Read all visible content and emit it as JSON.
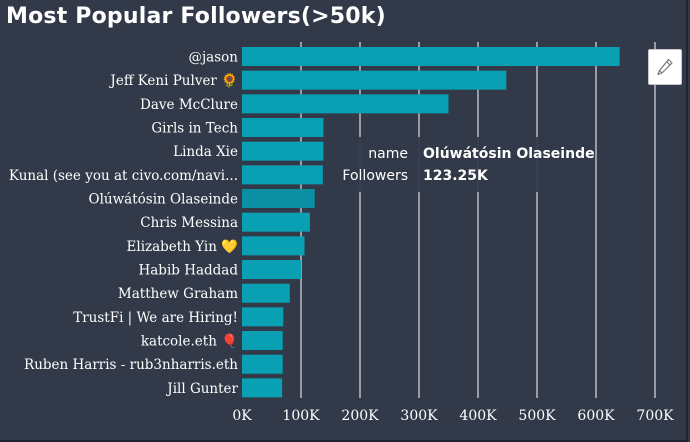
{
  "title": "Most Popular Followers(>50k)",
  "colors": {
    "background": "#323948",
    "bar": "#0aa0b4",
    "bar_highlight": "#0b8fa2",
    "grid": "#ffffff",
    "text": "#ffffff"
  },
  "edit_icon": "pencil-icon",
  "tooltip": {
    "name_key": "name",
    "name_value": "Olúwátósin Olaseinde",
    "followers_key": "Followers",
    "followers_value": "123.25K"
  },
  "chart_data": {
    "type": "bar",
    "orientation": "horizontal",
    "title": "Most Popular Followers(>50k)",
    "categories": [
      "@jason",
      "Jeff Keni Pulver 🌻",
      "Dave McClure",
      "Girls in Tech",
      "Linda Xie",
      "Kunal (see you at civo.com/navi...",
      "Olúwátósin Olaseinde",
      "Chris Messina",
      "Elizabeth Yin 💛",
      "Habib Haddad",
      "Matthew Graham",
      "TrustFi | We are Hiring!",
      "katcole.eth 🎈",
      "Ruben Harris - rub3nharris.eth",
      "Jill Gunter"
    ],
    "values": [
      640000,
      448000,
      350000,
      138000,
      138000,
      137000,
      123250,
      115000,
      106000,
      100000,
      81000,
      70000,
      69000,
      69000,
      68000
    ],
    "xlim": [
      0,
      700000
    ],
    "xticks": [
      0,
      100000,
      200000,
      300000,
      400000,
      500000,
      600000,
      700000
    ],
    "xtick_labels": [
      "0K",
      "100K",
      "200K",
      "300K",
      "400K",
      "500K",
      "600K",
      "700K"
    ],
    "grid": "vertical",
    "highlighted": "Olúwátósin Olaseinde"
  }
}
